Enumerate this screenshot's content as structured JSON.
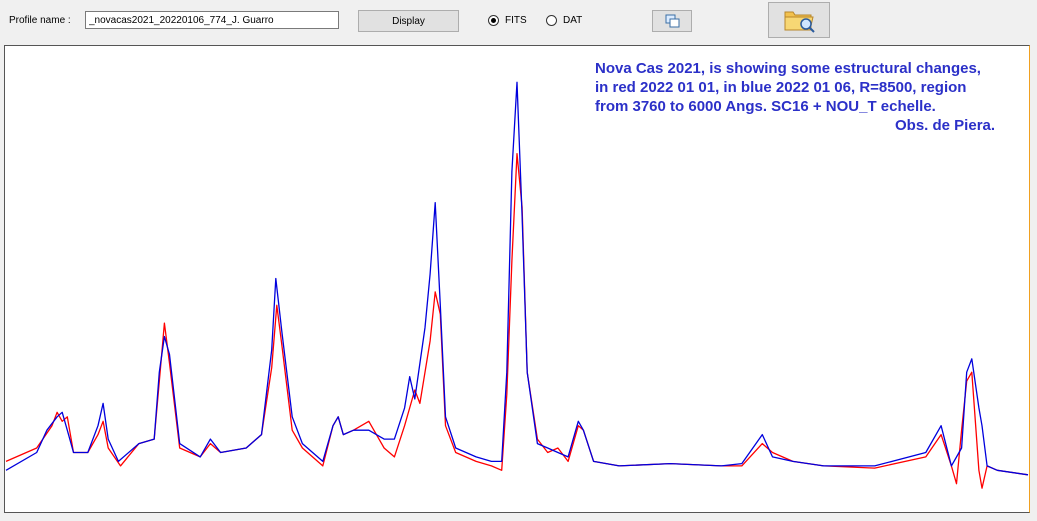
{
  "toolbar": {
    "profile_label": "Profile name :",
    "profile_value": "_novacas2021_20220106_774_J. Guarro",
    "display_label": "Display",
    "format_options": [
      {
        "label": "FITS",
        "selected": true
      },
      {
        "label": "DAT",
        "selected": false
      }
    ],
    "copy_icon": "copy-window-icon",
    "open_icon": "folder-search-icon"
  },
  "annotation": {
    "lines": [
      "Nova Cas 2021, is showing some estructural changes,",
      "in red 2022 01 01, in blue 2022 01 06,  R=8500,  region",
      "from 3760 to 6000 Angs.  SC16 + NOU_T echelle.",
      "Obs. de Piera."
    ]
  },
  "colors": {
    "series_2022_01_01": "#ff0000",
    "series_2022_01_06": "#0000dd",
    "annotation": "#2b30c8"
  },
  "chart_data": {
    "type": "line",
    "x_range": [
      3760,
      6000
    ],
    "axes_visible": false,
    "grid": false,
    "series": [
      {
        "name": "2022 01 01",
        "color": "#ff0000",
        "points": [
          [
            0,
            0.1
          ],
          [
            0.03,
            0.13
          ],
          [
            0.045,
            0.18
          ],
          [
            0.05,
            0.21
          ],
          [
            0.055,
            0.19
          ],
          [
            0.06,
            0.2
          ],
          [
            0.066,
            0.12
          ],
          [
            0.08,
            0.12
          ],
          [
            0.09,
            0.16
          ],
          [
            0.095,
            0.19
          ],
          [
            0.1,
            0.13
          ],
          [
            0.112,
            0.09
          ],
          [
            0.13,
            0.14
          ],
          [
            0.145,
            0.15
          ],
          [
            0.152,
            0.33
          ],
          [
            0.155,
            0.41
          ],
          [
            0.16,
            0.32
          ],
          [
            0.17,
            0.13
          ],
          [
            0.19,
            0.11
          ],
          [
            0.2,
            0.14
          ],
          [
            0.21,
            0.12
          ],
          [
            0.235,
            0.13
          ],
          [
            0.25,
            0.16
          ],
          [
            0.26,
            0.31
          ],
          [
            0.265,
            0.45
          ],
          [
            0.27,
            0.36
          ],
          [
            0.28,
            0.17
          ],
          [
            0.29,
            0.13
          ],
          [
            0.31,
            0.09
          ],
          [
            0.32,
            0.18
          ],
          [
            0.325,
            0.2
          ],
          [
            0.33,
            0.16
          ],
          [
            0.34,
            0.17
          ],
          [
            0.355,
            0.19
          ],
          [
            0.37,
            0.13
          ],
          [
            0.38,
            0.11
          ],
          [
            0.39,
            0.18
          ],
          [
            0.4,
            0.26
          ],
          [
            0.405,
            0.23
          ],
          [
            0.415,
            0.37
          ],
          [
            0.42,
            0.48
          ],
          [
            0.425,
            0.43
          ],
          [
            0.43,
            0.18
          ],
          [
            0.44,
            0.12
          ],
          [
            0.46,
            0.1
          ],
          [
            0.475,
            0.09
          ],
          [
            0.485,
            0.08
          ],
          [
            0.49,
            0.25
          ],
          [
            0.495,
            0.55
          ],
          [
            0.5,
            0.79
          ],
          [
            0.505,
            0.67
          ],
          [
            0.51,
            0.3
          ],
          [
            0.52,
            0.15
          ],
          [
            0.53,
            0.12
          ],
          [
            0.54,
            0.13
          ],
          [
            0.55,
            0.1
          ],
          [
            0.56,
            0.18
          ],
          [
            0.565,
            0.17
          ],
          [
            0.575,
            0.1
          ],
          [
            0.6,
            0.09
          ],
          [
            0.65,
            0.095
          ],
          [
            0.7,
            0.09
          ],
          [
            0.72,
            0.09
          ],
          [
            0.74,
            0.14
          ],
          [
            0.75,
            0.12
          ],
          [
            0.77,
            0.1
          ],
          [
            0.8,
            0.09
          ],
          [
            0.85,
            0.085
          ],
          [
            0.9,
            0.11
          ],
          [
            0.915,
            0.16
          ],
          [
            0.925,
            0.09
          ],
          [
            0.93,
            0.05
          ],
          [
            0.935,
            0.17
          ],
          [
            0.94,
            0.28
          ],
          [
            0.945,
            0.3
          ],
          [
            0.952,
            0.08
          ],
          [
            0.955,
            0.04
          ],
          [
            0.96,
            0.09
          ],
          [
            0.97,
            0.08
          ],
          [
            1,
            0.07
          ]
        ]
      },
      {
        "name": "2022 01 06",
        "color": "#0000dd",
        "points": [
          [
            0,
            0.08
          ],
          [
            0.03,
            0.12
          ],
          [
            0.04,
            0.17
          ],
          [
            0.05,
            0.2
          ],
          [
            0.055,
            0.21
          ],
          [
            0.06,
            0.17
          ],
          [
            0.066,
            0.12
          ],
          [
            0.08,
            0.12
          ],
          [
            0.09,
            0.18
          ],
          [
            0.095,
            0.23
          ],
          [
            0.1,
            0.15
          ],
          [
            0.11,
            0.1
          ],
          [
            0.13,
            0.14
          ],
          [
            0.145,
            0.15
          ],
          [
            0.15,
            0.3
          ],
          [
            0.155,
            0.38
          ],
          [
            0.16,
            0.34
          ],
          [
            0.17,
            0.14
          ],
          [
            0.19,
            0.11
          ],
          [
            0.2,
            0.15
          ],
          [
            0.21,
            0.12
          ],
          [
            0.235,
            0.13
          ],
          [
            0.25,
            0.16
          ],
          [
            0.26,
            0.35
          ],
          [
            0.264,
            0.51
          ],
          [
            0.27,
            0.39
          ],
          [
            0.28,
            0.2
          ],
          [
            0.29,
            0.14
          ],
          [
            0.31,
            0.1
          ],
          [
            0.32,
            0.18
          ],
          [
            0.325,
            0.2
          ],
          [
            0.33,
            0.16
          ],
          [
            0.34,
            0.17
          ],
          [
            0.355,
            0.17
          ],
          [
            0.37,
            0.15
          ],
          [
            0.38,
            0.15
          ],
          [
            0.39,
            0.22
          ],
          [
            0.395,
            0.29
          ],
          [
            0.4,
            0.24
          ],
          [
            0.41,
            0.4
          ],
          [
            0.415,
            0.52
          ],
          [
            0.42,
            0.68
          ],
          [
            0.425,
            0.45
          ],
          [
            0.43,
            0.2
          ],
          [
            0.44,
            0.13
          ],
          [
            0.46,
            0.11
          ],
          [
            0.475,
            0.1
          ],
          [
            0.485,
            0.1
          ],
          [
            0.49,
            0.3
          ],
          [
            0.495,
            0.75
          ],
          [
            0.5,
            0.95
          ],
          [
            0.505,
            0.65
          ],
          [
            0.51,
            0.3
          ],
          [
            0.52,
            0.14
          ],
          [
            0.53,
            0.13
          ],
          [
            0.54,
            0.12
          ],
          [
            0.55,
            0.11
          ],
          [
            0.56,
            0.19
          ],
          [
            0.565,
            0.17
          ],
          [
            0.575,
            0.1
          ],
          [
            0.6,
            0.09
          ],
          [
            0.65,
            0.095
          ],
          [
            0.7,
            0.09
          ],
          [
            0.72,
            0.095
          ],
          [
            0.74,
            0.16
          ],
          [
            0.75,
            0.11
          ],
          [
            0.77,
            0.1
          ],
          [
            0.8,
            0.09
          ],
          [
            0.85,
            0.09
          ],
          [
            0.9,
            0.12
          ],
          [
            0.915,
            0.18
          ],
          [
            0.925,
            0.09
          ],
          [
            0.935,
            0.13
          ],
          [
            0.94,
            0.3
          ],
          [
            0.945,
            0.33
          ],
          [
            0.952,
            0.22
          ],
          [
            0.955,
            0.18
          ],
          [
            0.96,
            0.09
          ],
          [
            0.97,
            0.08
          ],
          [
            1,
            0.07
          ]
        ]
      }
    ]
  }
}
